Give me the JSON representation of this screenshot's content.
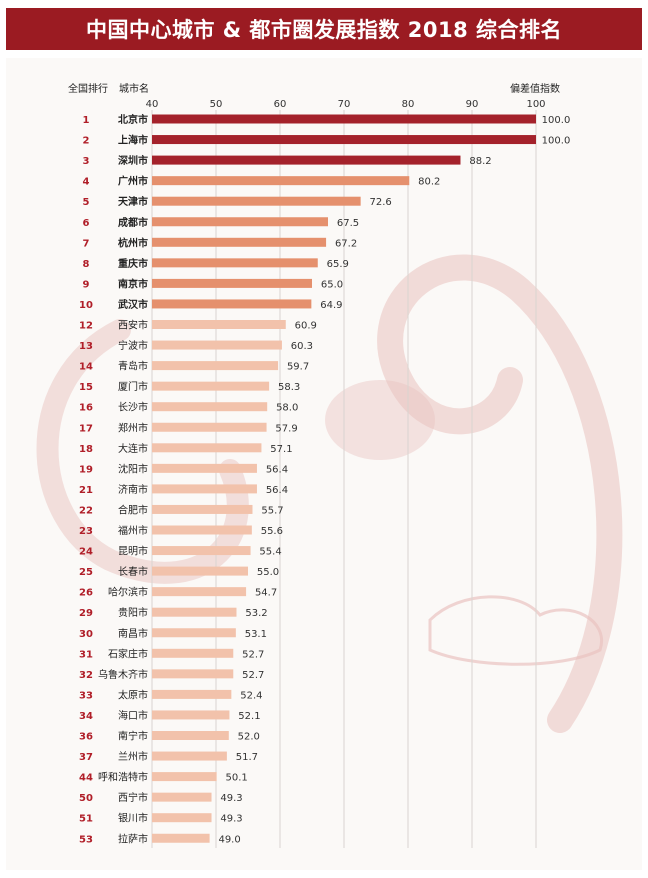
{
  "title": "中国中心城市 & 都市圈发展指数 2018 综合排名",
  "colors": {
    "banner": "#9b1b22",
    "tier1": "#a4222b",
    "tier2": "#e5906d",
    "tier3": "#f2c2ab",
    "rank": "#b01e28",
    "dragon": "#e9c3c0"
  },
  "decoration": "dragon-watermark",
  "chart_data": {
    "type": "bar",
    "orientation": "horizontal",
    "rank_header": "全国排行",
    "city_header": "城市名",
    "value_header": "偏差值指数",
    "xlim": [
      40,
      100
    ],
    "xticks": [
      "40",
      "50",
      "60",
      "70",
      "80",
      "90",
      "100"
    ],
    "grid": true,
    "rows": [
      {
        "rank": "1",
        "city": "北京市",
        "value": 100.0,
        "label": "100.0",
        "tier": 1
      },
      {
        "rank": "2",
        "city": "上海市",
        "value": 100.0,
        "label": "100.0",
        "tier": 1
      },
      {
        "rank": "3",
        "city": "深圳市",
        "value": 88.2,
        "label": "88.2",
        "tier": 1
      },
      {
        "rank": "4",
        "city": "广州市",
        "value": 80.2,
        "label": "80.2",
        "tier": 2
      },
      {
        "rank": "5",
        "city": "天津市",
        "value": 72.6,
        "label": "72.6",
        "tier": 2
      },
      {
        "rank": "6",
        "city": "成都市",
        "value": 67.5,
        "label": "67.5",
        "tier": 2
      },
      {
        "rank": "7",
        "city": "杭州市",
        "value": 67.2,
        "label": "67.2",
        "tier": 2
      },
      {
        "rank": "8",
        "city": "重庆市",
        "value": 65.9,
        "label": "65.9",
        "tier": 2
      },
      {
        "rank": "9",
        "city": "南京市",
        "value": 65.0,
        "label": "65.0",
        "tier": 2
      },
      {
        "rank": "10",
        "city": "武汉市",
        "value": 64.9,
        "label": "64.9",
        "tier": 2
      },
      {
        "rank": "12",
        "city": "西安市",
        "value": 60.9,
        "label": "60.9",
        "tier": 3
      },
      {
        "rank": "13",
        "city": "宁波市",
        "value": 60.3,
        "label": "60.3",
        "tier": 3
      },
      {
        "rank": "14",
        "city": "青岛市",
        "value": 59.7,
        "label": "59.7",
        "tier": 3
      },
      {
        "rank": "15",
        "city": "厦门市",
        "value": 58.3,
        "label": "58.3",
        "tier": 3
      },
      {
        "rank": "16",
        "city": "长沙市",
        "value": 58.0,
        "label": "58.0",
        "tier": 3
      },
      {
        "rank": "17",
        "city": "郑州市",
        "value": 57.9,
        "label": "57.9",
        "tier": 3
      },
      {
        "rank": "18",
        "city": "大连市",
        "value": 57.1,
        "label": "57.1",
        "tier": 3
      },
      {
        "rank": "19",
        "city": "沈阳市",
        "value": 56.4,
        "label": "56.4",
        "tier": 3
      },
      {
        "rank": "21",
        "city": "济南市",
        "value": 56.4,
        "label": "56.4",
        "tier": 3
      },
      {
        "rank": "22",
        "city": "合肥市",
        "value": 55.7,
        "label": "55.7",
        "tier": 3
      },
      {
        "rank": "23",
        "city": "福州市",
        "value": 55.6,
        "label": "55.6",
        "tier": 3
      },
      {
        "rank": "24",
        "city": "昆明市",
        "value": 55.4,
        "label": "55.4",
        "tier": 3
      },
      {
        "rank": "25",
        "city": "长春市",
        "value": 55.0,
        "label": "55.0",
        "tier": 3
      },
      {
        "rank": "26",
        "city": "哈尔滨市",
        "value": 54.7,
        "label": "54.7",
        "tier": 3
      },
      {
        "rank": "29",
        "city": "贵阳市",
        "value": 53.2,
        "label": "53.2",
        "tier": 3
      },
      {
        "rank": "30",
        "city": "南昌市",
        "value": 53.1,
        "label": "53.1",
        "tier": 3
      },
      {
        "rank": "31",
        "city": "石家庄市",
        "value": 52.7,
        "label": "52.7",
        "tier": 3
      },
      {
        "rank": "32",
        "city": "乌鲁木齐市",
        "value": 52.7,
        "label": "52.7",
        "tier": 3
      },
      {
        "rank": "33",
        "city": "太原市",
        "value": 52.4,
        "label": "52.4",
        "tier": 3
      },
      {
        "rank": "34",
        "city": "海口市",
        "value": 52.1,
        "label": "52.1",
        "tier": 3
      },
      {
        "rank": "36",
        "city": "南宁市",
        "value": 52.0,
        "label": "52.0",
        "tier": 3
      },
      {
        "rank": "37",
        "city": "兰州市",
        "value": 51.7,
        "label": "51.7",
        "tier": 3
      },
      {
        "rank": "44",
        "city": "呼和浩特市",
        "value": 50.1,
        "label": "50.1",
        "tier": 3
      },
      {
        "rank": "50",
        "city": "西宁市",
        "value": 49.3,
        "label": "49.3",
        "tier": 3
      },
      {
        "rank": "51",
        "city": "银川市",
        "value": 49.3,
        "label": "49.3",
        "tier": 3
      },
      {
        "rank": "53",
        "city": "拉萨市",
        "value": 49.0,
        "label": "49.0",
        "tier": 3
      }
    ]
  }
}
